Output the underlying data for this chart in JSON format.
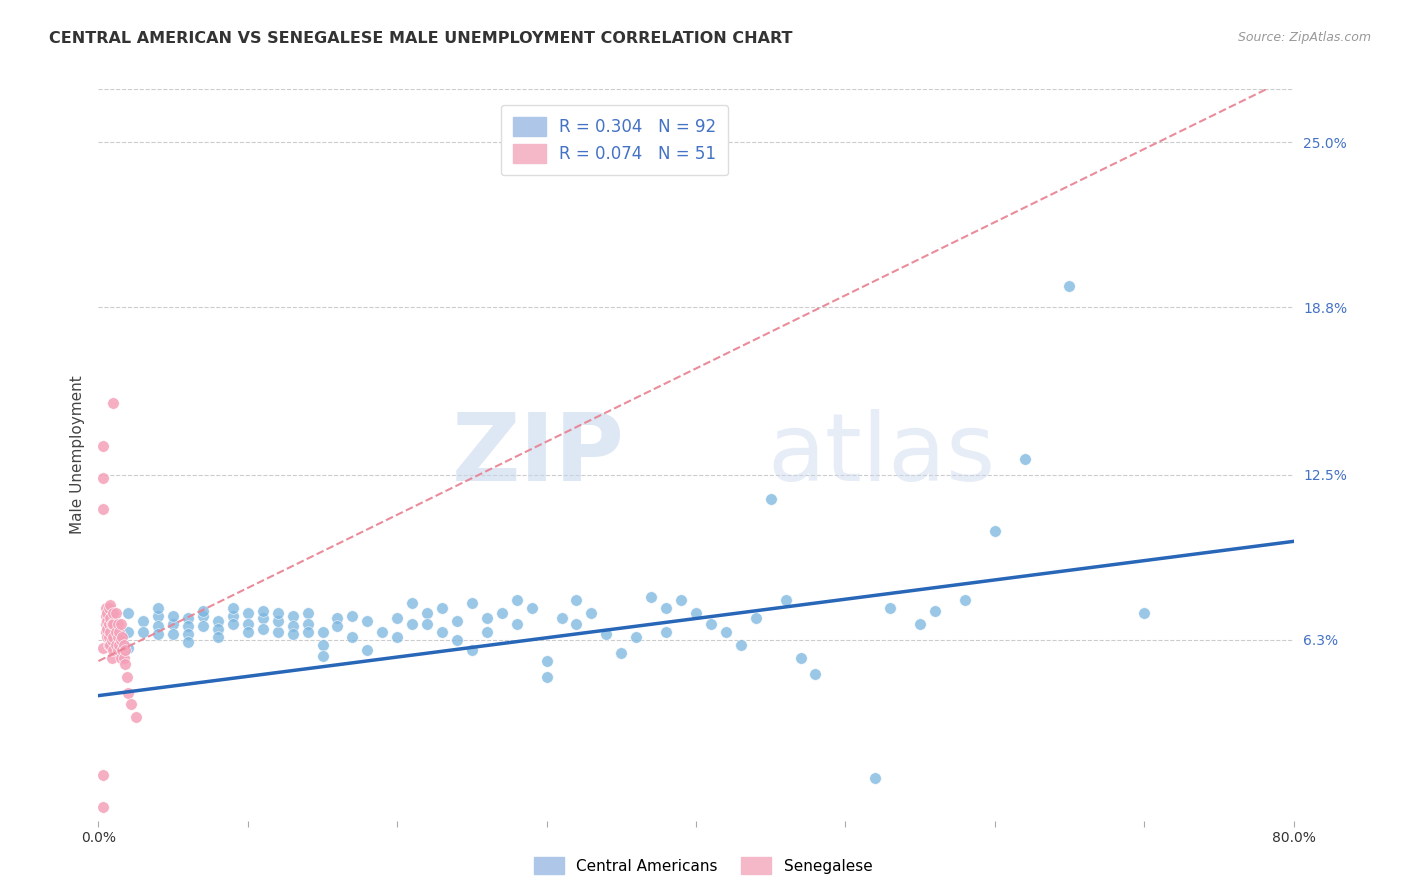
{
  "title": "CENTRAL AMERICAN VS SENEGALESE MALE UNEMPLOYMENT CORRELATION CHART",
  "source": "Source: ZipAtlas.com",
  "ylabel": "Male Unemployment",
  "x_min": 0.0,
  "x_max": 0.8,
  "y_min": -0.005,
  "y_max": 0.27,
  "x_ticks": [
    0.0,
    0.1,
    0.2,
    0.3,
    0.4,
    0.5,
    0.6,
    0.7,
    0.8
  ],
  "y_tick_labels_right": [
    "25.0%",
    "18.8%",
    "12.5%",
    "6.3%"
  ],
  "y_tick_vals_right": [
    0.25,
    0.188,
    0.125,
    0.063
  ],
  "blue_color": "#7ab5e0",
  "pink_color": "#f4a0b8",
  "blue_line_color": "#2866b8",
  "pink_line_color": "#e88090",
  "blue_points": [
    [
      0.01,
      0.068
    ],
    [
      0.02,
      0.073
    ],
    [
      0.02,
      0.066
    ],
    [
      0.02,
      0.06
    ],
    [
      0.03,
      0.07
    ],
    [
      0.03,
      0.066
    ],
    [
      0.04,
      0.072
    ],
    [
      0.04,
      0.068
    ],
    [
      0.04,
      0.065
    ],
    [
      0.04,
      0.075
    ],
    [
      0.05,
      0.069
    ],
    [
      0.05,
      0.072
    ],
    [
      0.05,
      0.065
    ],
    [
      0.06,
      0.071
    ],
    [
      0.06,
      0.068
    ],
    [
      0.06,
      0.065
    ],
    [
      0.06,
      0.062
    ],
    [
      0.07,
      0.072
    ],
    [
      0.07,
      0.068
    ],
    [
      0.07,
      0.074
    ],
    [
      0.08,
      0.07
    ],
    [
      0.08,
      0.067
    ],
    [
      0.08,
      0.064
    ],
    [
      0.09,
      0.072
    ],
    [
      0.09,
      0.069
    ],
    [
      0.09,
      0.075
    ],
    [
      0.1,
      0.073
    ],
    [
      0.1,
      0.069
    ],
    [
      0.1,
      0.066
    ],
    [
      0.11,
      0.071
    ],
    [
      0.11,
      0.074
    ],
    [
      0.11,
      0.067
    ],
    [
      0.12,
      0.066
    ],
    [
      0.12,
      0.07
    ],
    [
      0.12,
      0.073
    ],
    [
      0.13,
      0.072
    ],
    [
      0.13,
      0.068
    ],
    [
      0.13,
      0.065
    ],
    [
      0.14,
      0.073
    ],
    [
      0.14,
      0.069
    ],
    [
      0.14,
      0.066
    ],
    [
      0.15,
      0.061
    ],
    [
      0.15,
      0.066
    ],
    [
      0.15,
      0.057
    ],
    [
      0.16,
      0.071
    ],
    [
      0.16,
      0.068
    ],
    [
      0.17,
      0.064
    ],
    [
      0.17,
      0.072
    ],
    [
      0.18,
      0.07
    ],
    [
      0.18,
      0.059
    ],
    [
      0.19,
      0.066
    ],
    [
      0.2,
      0.071
    ],
    [
      0.2,
      0.064
    ],
    [
      0.21,
      0.077
    ],
    [
      0.21,
      0.069
    ],
    [
      0.22,
      0.073
    ],
    [
      0.22,
      0.069
    ],
    [
      0.23,
      0.075
    ],
    [
      0.23,
      0.066
    ],
    [
      0.24,
      0.07
    ],
    [
      0.24,
      0.063
    ],
    [
      0.25,
      0.077
    ],
    [
      0.25,
      0.059
    ],
    [
      0.26,
      0.071
    ],
    [
      0.26,
      0.066
    ],
    [
      0.27,
      0.073
    ],
    [
      0.28,
      0.078
    ],
    [
      0.28,
      0.069
    ],
    [
      0.29,
      0.075
    ],
    [
      0.3,
      0.055
    ],
    [
      0.3,
      0.049
    ],
    [
      0.31,
      0.071
    ],
    [
      0.32,
      0.078
    ],
    [
      0.32,
      0.069
    ],
    [
      0.33,
      0.073
    ],
    [
      0.34,
      0.065
    ],
    [
      0.35,
      0.058
    ],
    [
      0.36,
      0.064
    ],
    [
      0.37,
      0.079
    ],
    [
      0.38,
      0.075
    ],
    [
      0.38,
      0.066
    ],
    [
      0.39,
      0.078
    ],
    [
      0.4,
      0.073
    ],
    [
      0.41,
      0.069
    ],
    [
      0.42,
      0.066
    ],
    [
      0.43,
      0.061
    ],
    [
      0.44,
      0.071
    ],
    [
      0.45,
      0.116
    ],
    [
      0.46,
      0.078
    ],
    [
      0.47,
      0.056
    ],
    [
      0.48,
      0.05
    ],
    [
      0.52,
      0.011
    ],
    [
      0.53,
      0.075
    ],
    [
      0.55,
      0.069
    ],
    [
      0.56,
      0.074
    ],
    [
      0.58,
      0.078
    ],
    [
      0.6,
      0.104
    ],
    [
      0.62,
      0.131
    ],
    [
      0.65,
      0.196
    ],
    [
      0.7,
      0.073
    ]
  ],
  "pink_points": [
    [
      0.003,
      0.0
    ],
    [
      0.003,
      0.012
    ],
    [
      0.003,
      0.06
    ],
    [
      0.003,
      0.112
    ],
    [
      0.003,
      0.124
    ],
    [
      0.003,
      0.136
    ],
    [
      0.005,
      0.066
    ],
    [
      0.005,
      0.069
    ],
    [
      0.005,
      0.072
    ],
    [
      0.005,
      0.075
    ],
    [
      0.006,
      0.064
    ],
    [
      0.006,
      0.067
    ],
    [
      0.006,
      0.07
    ],
    [
      0.006,
      0.073
    ],
    [
      0.007,
      0.061
    ],
    [
      0.007,
      0.064
    ],
    [
      0.007,
      0.069
    ],
    [
      0.007,
      0.075
    ],
    [
      0.008,
      0.061
    ],
    [
      0.008,
      0.066
    ],
    [
      0.008,
      0.071
    ],
    [
      0.008,
      0.076
    ],
    [
      0.009,
      0.056
    ],
    [
      0.009,
      0.063
    ],
    [
      0.009,
      0.069
    ],
    [
      0.01,
      0.059
    ],
    [
      0.01,
      0.064
    ],
    [
      0.01,
      0.069
    ],
    [
      0.01,
      0.073
    ],
    [
      0.01,
      0.152
    ],
    [
      0.012,
      0.061
    ],
    [
      0.012,
      0.066
    ],
    [
      0.012,
      0.073
    ],
    [
      0.013,
      0.059
    ],
    [
      0.013,
      0.064
    ],
    [
      0.013,
      0.069
    ],
    [
      0.014,
      0.061
    ],
    [
      0.014,
      0.066
    ],
    [
      0.015,
      0.056
    ],
    [
      0.015,
      0.063
    ],
    [
      0.015,
      0.069
    ],
    [
      0.016,
      0.059
    ],
    [
      0.016,
      0.064
    ],
    [
      0.017,
      0.056
    ],
    [
      0.017,
      0.061
    ],
    [
      0.018,
      0.054
    ],
    [
      0.018,
      0.059
    ],
    [
      0.019,
      0.049
    ],
    [
      0.02,
      0.043
    ],
    [
      0.022,
      0.039
    ],
    [
      0.025,
      0.034
    ]
  ],
  "blue_trendline": {
    "x_start": 0.0,
    "y_start": 0.042,
    "x_end": 0.8,
    "y_end": 0.1
  },
  "pink_trendline": {
    "x_start": 0.0,
    "y_start": 0.055,
    "x_end": 0.8,
    "y_end": 0.275
  }
}
